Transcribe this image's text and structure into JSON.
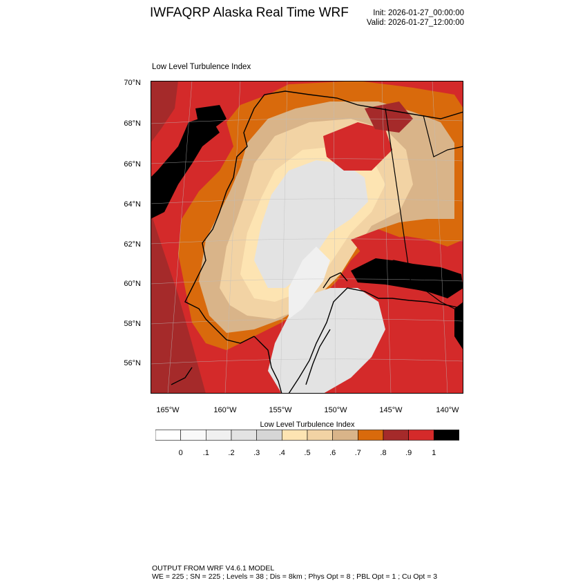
{
  "header": {
    "title": "IWFAQRP Alaska Real Time WRF",
    "init": "Init: 2026-01-27_00:00:00",
    "valid": "Valid: 2026-01-27_12:00:00"
  },
  "map": {
    "panel_title": "Low Level Turbulence Index",
    "lat_labels": [
      "70°N",
      "68°N",
      "66°N",
      "64°N",
      "62°N",
      "60°N",
      "58°N",
      "56°N"
    ],
    "lon_labels": [
      "165°W",
      "160°W",
      "155°W",
      "150°W",
      "145°W",
      "140°W"
    ],
    "variable_range": [
      0,
      1
    ]
  },
  "colorbar": {
    "title": "Low Level Turbulence Index",
    "colors": [
      "#ffffff",
      "#f9f9f9",
      "#f0f0f0",
      "#e3e3e3",
      "#d6d6d6",
      "#fde4b2",
      "#f2d3a4",
      "#d9b489",
      "#d96a0c",
      "#a52a2a",
      "#d42a2a",
      "#000000"
    ],
    "labels": [
      "0",
      ".1",
      ".2",
      ".3",
      ".4",
      ".5",
      ".6",
      ".7",
      ".8",
      ".9",
      "1"
    ]
  },
  "footer": {
    "line1": "OUTPUT FROM WRF V4.6.1 MODEL",
    "line2": "WE = 225 ; SN = 225 ; Levels = 38 ; Dis = 8km ; Phys Opt = 8 ; PBL Opt = 1 ; Cu Opt = 3"
  }
}
